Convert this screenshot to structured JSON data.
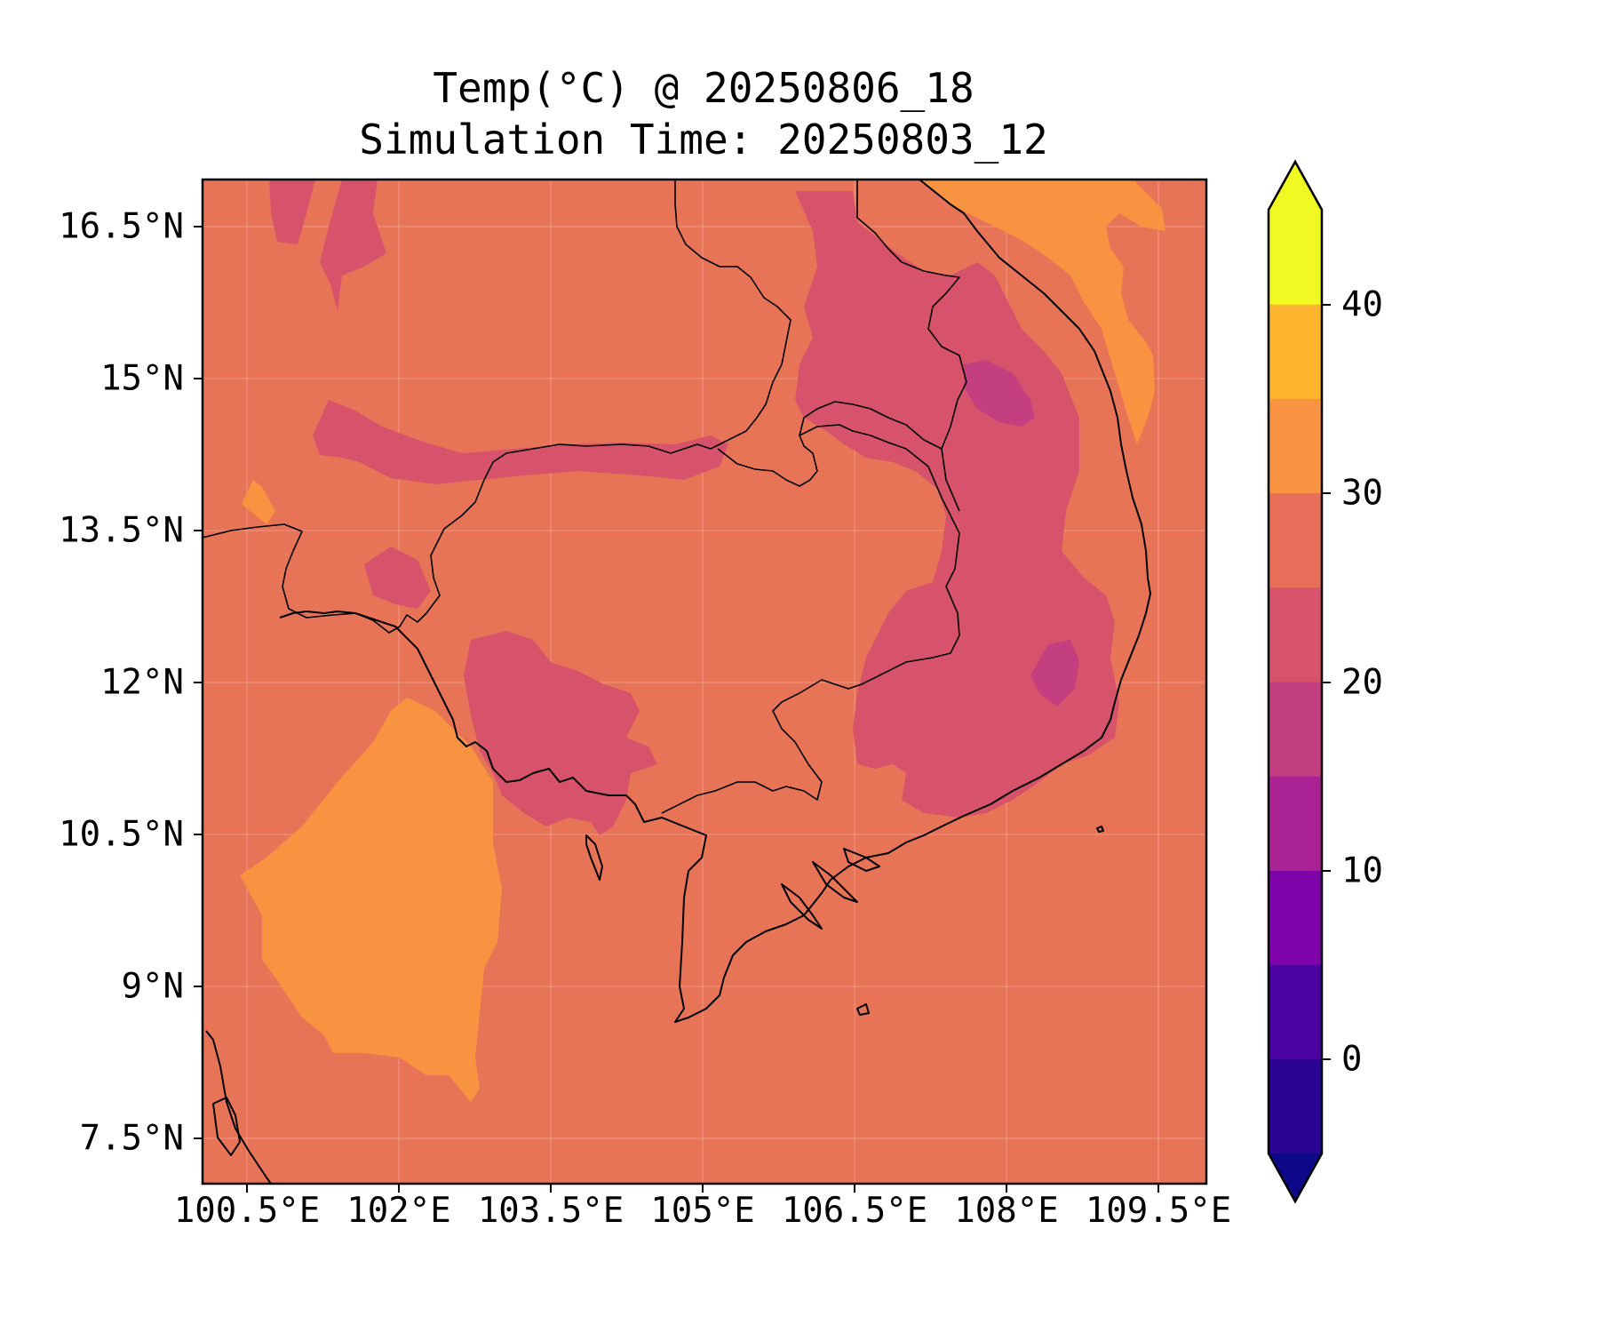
{
  "title": "Temp(°C) @ 20250806_18",
  "subtitle": "Simulation Time: 20250803_12",
  "lat_labels": [
    "16.5°N",
    "15°N",
    "13.5°N",
    "12°N",
    "10.5°N",
    "9°N",
    "7.5°N"
  ],
  "lon_labels": [
    "100.5°E",
    "102°E",
    "103.5°E",
    "105°E",
    "106.5°E",
    "108°E",
    "109.5°E"
  ],
  "colorbar": {
    "tick_labels": [
      "40",
      "30",
      "20",
      "10",
      "0"
    ],
    "levels": [
      -5,
      0,
      5,
      10,
      15,
      20,
      25,
      30,
      35,
      40,
      45
    ],
    "colors": [
      "#0d0887",
      "#2a0593",
      "#4b03a1",
      "#7e03a8",
      "#a92395",
      "#c43f80",
      "#d6536b",
      "#e76f5a",
      "#f89441",
      "#fdb42f",
      "#f0f921"
    ],
    "extend": "both"
  },
  "map": {
    "background_color": "#e87458",
    "warm_color": "#f89441",
    "cool_color": "#d6536b",
    "coldest_color": "#c43f80",
    "hottest_color": "#fdb42f",
    "coastline_color": "#000000"
  }
}
